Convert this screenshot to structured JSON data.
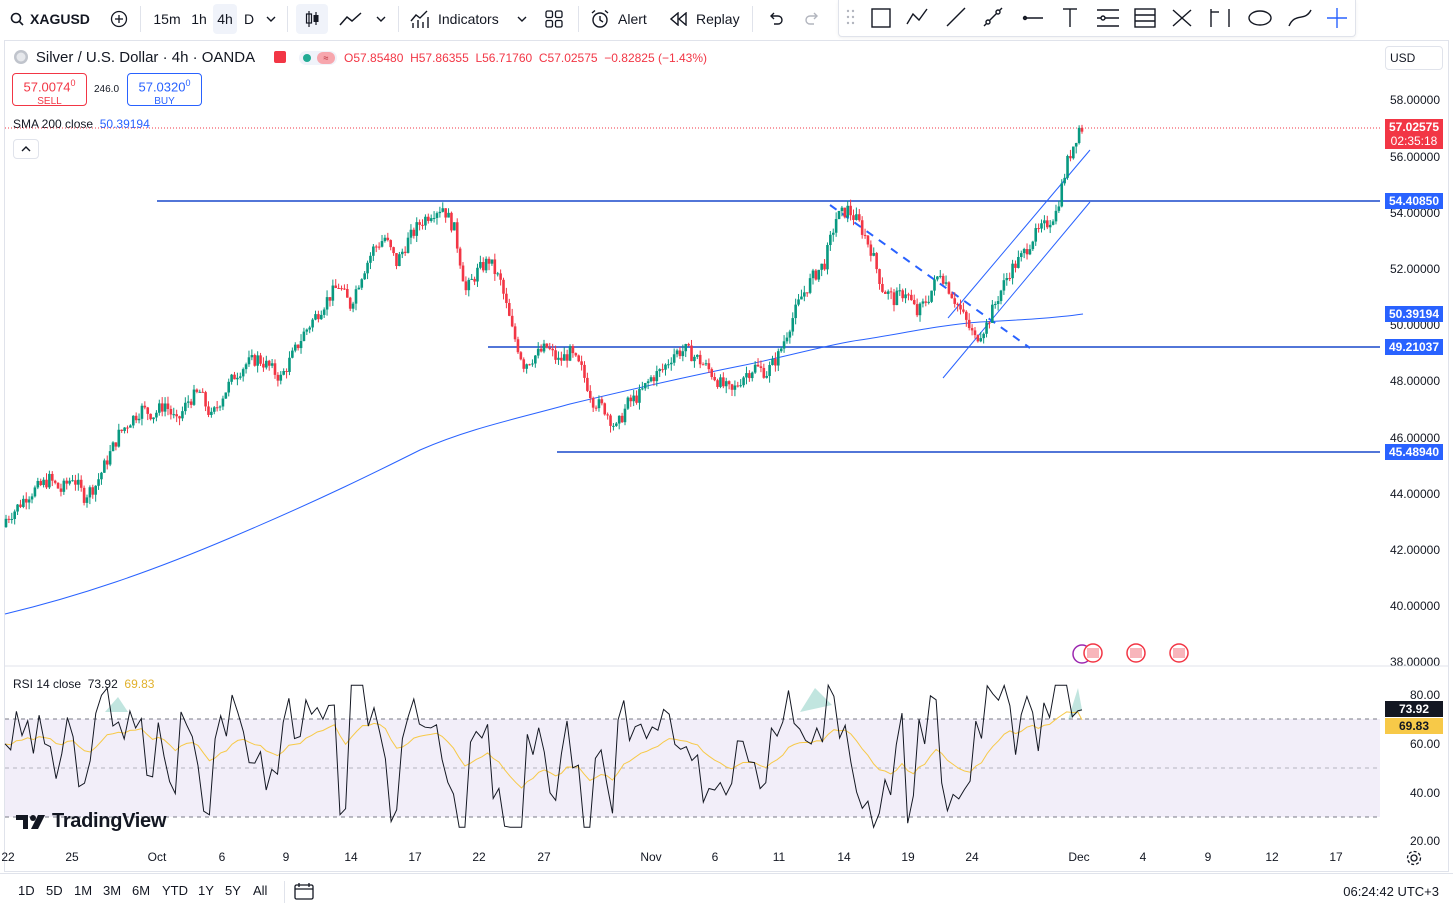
{
  "toolbar": {
    "symbol": "XAGUSD",
    "intervals": [
      "15m",
      "1h",
      "4h",
      "D"
    ],
    "active_interval": "4h",
    "indicators_label": "Indicators",
    "alert_label": "Alert",
    "replay_label": "Replay"
  },
  "legend": {
    "title": "Silver / U.S. Dollar · 4h · OANDA",
    "open": "O57.85480",
    "high": "H57.86355",
    "low": "L56.71760",
    "close": "C57.02575",
    "change": "−0.82825 (−1.43%)",
    "sell_price": "57.0074",
    "sell_sup": "0",
    "sell_label": "SELL",
    "spread": "246.0",
    "buy_price": "57.0320",
    "buy_sup": "0",
    "buy_label": "BUY",
    "sma_label": "SMA 200 close",
    "sma_value": "50.39194"
  },
  "currency": "USD",
  "price_axis": [
    "58.00000",
    "56.00000",
    "54.00000",
    "52.00000",
    "50.00000",
    "48.00000",
    "46.00000",
    "44.00000",
    "42.00000",
    "40.00000",
    "38.00000"
  ],
  "price_tags": {
    "last_price": "57.02575",
    "countdown": "02:35:18",
    "level_1": "54.40850",
    "sma": "50.39194",
    "level_2": "49.21037",
    "level_3": "45.48940"
  },
  "rsi": {
    "label": "RSI 14 close",
    "value": "73.92",
    "ma_value": "69.83",
    "axis": [
      "80.00",
      "60.00",
      "40.00",
      "20.00"
    ]
  },
  "watermark": "TradingView",
  "time_axis": [
    "22",
    "25",
    "Oct",
    "6",
    "9",
    "14",
    "17",
    "22",
    "27",
    "Nov",
    "6",
    "11",
    "14",
    "19",
    "24",
    "Dec",
    "4",
    "9",
    "12",
    "17"
  ],
  "range_buttons": [
    "1D",
    "5D",
    "1M",
    "3M",
    "6M",
    "YTD",
    "1Y",
    "5Y",
    "All"
  ],
  "clock": "06:24:42 UTC+3",
  "colors": {
    "up": "#089981",
    "down": "#f23645",
    "line": "#2962ff",
    "rsi_line": "#131722",
    "rsi_ma": "#f7c948",
    "rsi_band": "#7e57c2"
  },
  "chart_data": {
    "type": "candlestick",
    "symbol": "XAGUSD",
    "timeframe": "4h",
    "horizontal_levels": [
      54.4085,
      49.21037,
      45.4894
    ],
    "sma_200_last": 50.39194,
    "last_close": 57.02575,
    "ylim": [
      38,
      58.8
    ],
    "closes_approx": [
      43.0,
      43.4,
      43.9,
      44.2,
      44.5,
      44.1,
      44.6,
      43.9,
      44.3,
      45.2,
      46.1,
      46.6,
      47.0,
      46.8,
      47.2,
      46.5,
      47.3,
      47.6,
      46.7,
      47.5,
      48.2,
      48.6,
      48.8,
      48.5,
      48.1,
      48.9,
      49.7,
      50.3,
      50.9,
      51.4,
      50.7,
      51.8,
      52.7,
      53.1,
      52.2,
      53.0,
      53.6,
      54.0,
      54.2,
      53.4,
      51.2,
      51.9,
      52.3,
      51.5,
      49.8,
      48.6,
      48.9,
      49.2,
      48.7,
      49.0,
      48.4,
      47.3,
      47.0,
      46.3,
      47.2,
      47.5,
      48.1,
      48.4,
      49.0,
      49.1,
      48.8,
      48.4,
      47.9,
      47.6,
      48.2,
      48.5,
      48.3,
      48.9,
      50.0,
      51.0,
      51.7,
      52.2,
      53.8,
      54.1,
      53.6,
      52.7,
      51.3,
      50.9,
      51.2,
      50.4,
      51.0,
      51.9,
      51.1,
      50.3,
      49.5,
      50.0,
      51.0,
      51.9,
      52.4,
      53.1,
      53.5,
      54.0,
      55.8,
      57.0
    ],
    "rsi_range": [
      20,
      85
    ],
    "rsi_bands": [
      30,
      70
    ]
  }
}
